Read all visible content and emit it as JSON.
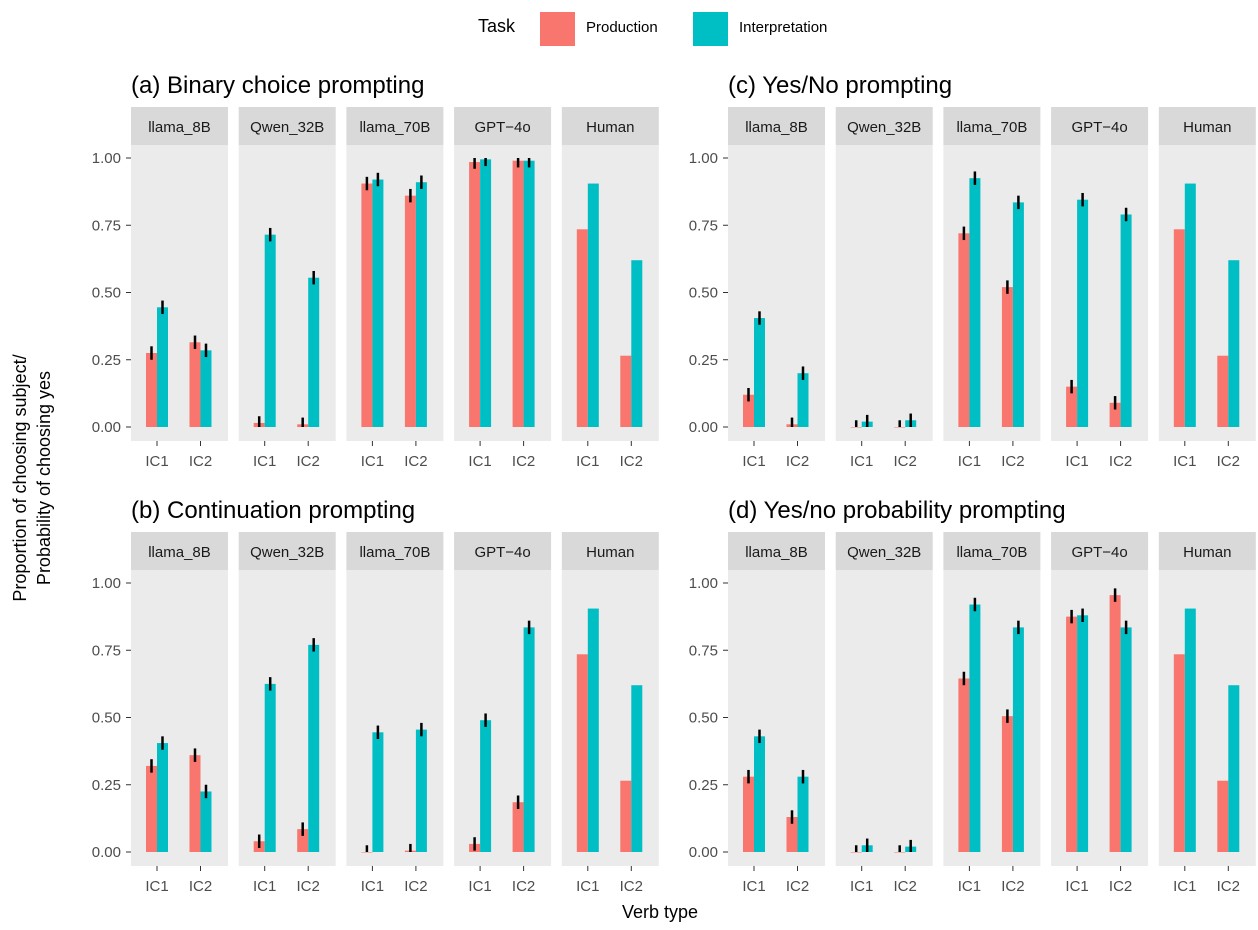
{
  "chart_data": {
    "type": "bar",
    "legend": {
      "title": "Task",
      "position": "top",
      "entries": [
        {
          "name": "Production",
          "color": "#F8766D"
        },
        {
          "name": "Interpretation",
          "color": "#00BFC4"
        }
      ]
    },
    "xlabel": "Verb type",
    "ylabel": [
      "Proportion of choosing subject/",
      "Probability of choosing yes"
    ],
    "ylim": [
      0,
      1.1
    ],
    "yticks": [
      "0.00",
      "0.25",
      "0.50",
      "0.75",
      "1.00"
    ],
    "facets": [
      "llama_8B",
      "Qwen_32B",
      "llama_70B",
      "GPT−4o",
      "Human"
    ],
    "categories": [
      "IC1",
      "IC2"
    ],
    "grid": false,
    "panels": [
      {
        "title": "(a) Binary choice prompting",
        "values": {
          "llama_8B": {
            "Production": [
              0.275,
              0.315
            ],
            "Interpretation": [
              0.445,
              0.285
            ]
          },
          "Qwen_32B": {
            "Production": [
              0.015,
              0.01
            ],
            "Interpretation": [
              0.715,
              0.555
            ]
          },
          "llama_70B": {
            "Production": [
              0.905,
              0.86
            ],
            "Interpretation": [
              0.92,
              0.91
            ]
          },
          "GPT−4o": {
            "Production": [
              0.985,
              0.99
            ],
            "Interpretation": [
              0.995,
              0.99
            ]
          },
          "Human": {
            "Production": [
              0.735,
              0.265
            ],
            "Interpretation": [
              0.905,
              0.62
            ]
          }
        }
      },
      {
        "title": "(b) Continuation prompting",
        "values": {
          "llama_8B": {
            "Production": [
              0.32,
              0.36
            ],
            "Interpretation": [
              0.405,
              0.225
            ]
          },
          "Qwen_32B": {
            "Production": [
              0.04,
              0.085
            ],
            "Interpretation": [
              0.625,
              0.77
            ]
          },
          "llama_70B": {
            "Production": [
              0.0,
              0.005
            ],
            "Interpretation": [
              0.445,
              0.455
            ]
          },
          "GPT−4o": {
            "Production": [
              0.03,
              0.185
            ],
            "Interpretation": [
              0.49,
              0.835
            ]
          },
          "Human": {
            "Production": [
              0.735,
              0.265
            ],
            "Interpretation": [
              0.905,
              0.62
            ]
          }
        }
      },
      {
        "title": "(c) Yes/No prompting",
        "values": {
          "llama_8B": {
            "Production": [
              0.12,
              0.01
            ],
            "Interpretation": [
              0.405,
              0.2
            ]
          },
          "Qwen_32B": {
            "Production": [
              0.0,
              0.0
            ],
            "Interpretation": [
              0.02,
              0.025
            ]
          },
          "llama_70B": {
            "Production": [
              0.72,
              0.52
            ],
            "Interpretation": [
              0.925,
              0.835
            ]
          },
          "GPT−4o": {
            "Production": [
              0.15,
              0.09
            ],
            "Interpretation": [
              0.845,
              0.79
            ]
          },
          "Human": {
            "Production": [
              0.735,
              0.265
            ],
            "Interpretation": [
              0.905,
              0.62
            ]
          }
        }
      },
      {
        "title": "(d) Yes/no probability prompting",
        "values": {
          "llama_8B": {
            "Production": [
              0.28,
              0.13
            ],
            "Interpretation": [
              0.43,
              0.28
            ]
          },
          "Qwen_32B": {
            "Production": [
              0.0,
              0.0
            ],
            "Interpretation": [
              0.025,
              0.02
            ]
          },
          "llama_70B": {
            "Production": [
              0.645,
              0.505
            ],
            "Interpretation": [
              0.92,
              0.835
            ]
          },
          "GPT−4o": {
            "Production": [
              0.875,
              0.955
            ],
            "Interpretation": [
              0.88,
              0.835
            ]
          },
          "Human": {
            "Production": [
              0.735,
              0.265
            ],
            "Interpretation": [
              0.905,
              0.62
            ]
          }
        }
      }
    ],
    "error_bar_halfwidth": 0.025,
    "error_bars_on_human": false
  }
}
